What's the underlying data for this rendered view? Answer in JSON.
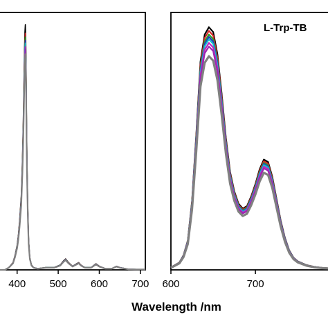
{
  "chart_data": [
    {
      "type": "line",
      "panel": "left",
      "xlabel": "",
      "xlim": [
        355,
        712
      ],
      "ylim": [
        0,
        1.05
      ],
      "grid": false,
      "xticks": [
        400,
        500,
        600,
        700
      ],
      "xtick_labels": [
        "400",
        "500",
        "600",
        "700"
      ],
      "base_x": [
        355,
        370,
        380,
        390,
        395,
        400,
        403,
        406,
        410,
        413,
        415,
        417,
        418,
        419,
        420,
        421,
        422,
        423,
        424,
        426,
        428,
        431,
        435,
        440,
        450,
        470,
        490,
        505,
        512,
        518,
        525,
        535,
        545,
        550,
        555,
        565,
        580,
        592,
        600,
        615,
        630,
        642,
        650,
        670,
        690,
        712
      ],
      "base_y": [
        0.0,
        0.0,
        0.01,
        0.03,
        0.06,
        0.1,
        0.14,
        0.2,
        0.3,
        0.45,
        0.6,
        0.8,
        0.9,
        0.97,
        1.0,
        0.95,
        0.8,
        0.6,
        0.45,
        0.25,
        0.12,
        0.05,
        0.02,
        0.01,
        0.005,
        0.01,
        0.01,
        0.02,
        0.035,
        0.045,
        0.03,
        0.015,
        0.025,
        0.03,
        0.02,
        0.01,
        0.01,
        0.025,
        0.015,
        0.005,
        0.005,
        0.015,
        0.01,
        0.003,
        0.002,
        0.002
      ],
      "series": [
        {
          "color": "#000000",
          "scale": 1.0
        },
        {
          "color": "#d62728",
          "scale": 0.965
        },
        {
          "color": "#2ca02c",
          "scale": 0.95
        },
        {
          "color": "#1f3fbf",
          "scale": 0.935
        },
        {
          "color": "#17becf",
          "scale": 0.925
        },
        {
          "color": "#c026c0",
          "scale": 0.91
        },
        {
          "color": "#9c27b0",
          "scale": 0.9
        },
        {
          "color": "#808080",
          "scale": 0.88
        }
      ]
    },
    {
      "type": "line",
      "panel": "right",
      "label": "L-Trp-TB",
      "xlabel": "",
      "xlim": [
        600,
        790
      ],
      "ylim": [
        0,
        1.05
      ],
      "grid": false,
      "xticks": [
        600,
        700
      ],
      "xtick_labels": [
        "600",
        "700"
      ],
      "base_x": [
        600,
        605,
        610,
        615,
        620,
        625,
        630,
        635,
        640,
        645,
        650,
        655,
        660,
        665,
        670,
        675,
        680,
        685,
        690,
        695,
        700,
        705,
        710,
        715,
        720,
        725,
        730,
        735,
        740,
        745,
        750,
        760,
        770,
        780,
        790
      ],
      "base_y": [
        0.01,
        0.02,
        0.03,
        0.06,
        0.12,
        0.28,
        0.55,
        0.85,
        0.96,
        0.99,
        0.97,
        0.88,
        0.72,
        0.54,
        0.4,
        0.32,
        0.27,
        0.25,
        0.26,
        0.3,
        0.35,
        0.41,
        0.45,
        0.44,
        0.38,
        0.29,
        0.2,
        0.13,
        0.08,
        0.05,
        0.035,
        0.02,
        0.012,
        0.008,
        0.006
      ],
      "series": [
        {
          "color": "#000000",
          "scale": 1.0
        },
        {
          "color": "#d62728",
          "scale": 0.985
        },
        {
          "color": "#2ca02c",
          "scale": 0.97
        },
        {
          "color": "#1f3fbf",
          "scale": 0.96
        },
        {
          "color": "#17becf",
          "scale": 0.95
        },
        {
          "color": "#c026c0",
          "scale": 0.935
        },
        {
          "color": "#9c27b0",
          "scale": 0.92
        },
        {
          "color": "#808080",
          "scale": 0.88
        }
      ]
    }
  ],
  "figure": {
    "xlabel": "Wavelength /nm"
  }
}
